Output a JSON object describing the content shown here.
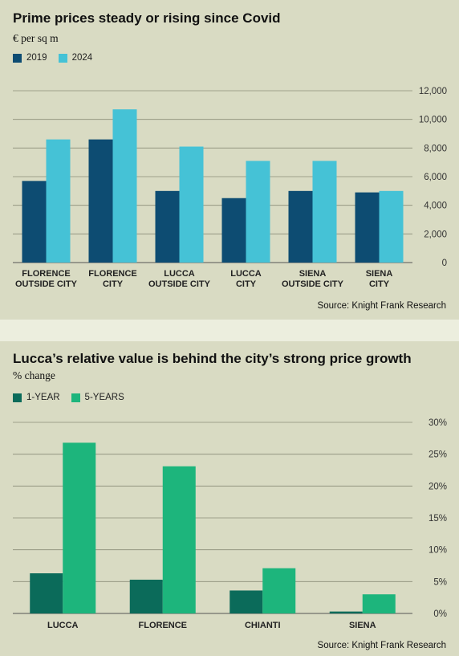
{
  "chart_data": [
    {
      "type": "bar",
      "title": "Prime prices steady or rising since Covid",
      "subtitle": "€ per sq m",
      "categories": [
        [
          "FLORENCE",
          "OUTSIDE CITY"
        ],
        [
          "FLORENCE",
          "CITY"
        ],
        [
          "LUCCA",
          "OUTSIDE CITY"
        ],
        [
          "LUCCA",
          "CITY"
        ],
        [
          "SIENA",
          "OUTSIDE CITY"
        ],
        [
          "SIENA",
          "CITY"
        ]
      ],
      "series": [
        {
          "name": "2019",
          "color": "#0d4c72",
          "values": [
            5700,
            8600,
            5000,
            4500,
            5000,
            4900
          ]
        },
        {
          "name": "2024",
          "color": "#45c2d6",
          "values": [
            8600,
            10700,
            8100,
            7100,
            7100,
            5000
          ]
        }
      ],
      "ylim": [
        0,
        12000
      ],
      "yticks": [
        "12,000",
        "10,000",
        "8,000",
        "6,000",
        "4,000",
        "2,000",
        "0"
      ],
      "ytick_values": [
        12000,
        10000,
        8000,
        6000,
        4000,
        2000,
        0
      ],
      "grid": true,
      "axis_position": "right",
      "legend_placement": "top-left",
      "source": "Source: Knight Frank Research"
    },
    {
      "type": "bar",
      "title": "Lucca’s relative value is behind the city’s strong price growth",
      "subtitle": "% change",
      "categories": [
        [
          "LUCCA"
        ],
        [
          "FLORENCE"
        ],
        [
          "CHIANTI"
        ],
        [
          "SIENA"
        ]
      ],
      "series": [
        {
          "name": "1-YEAR",
          "color": "#0b6b5a",
          "values": [
            6.3,
            5.3,
            3.6,
            0.3
          ]
        },
        {
          "name": "5-YEARS",
          "color": "#1db57c",
          "values": [
            26.8,
            23.1,
            7.1,
            3.0
          ]
        }
      ],
      "ylim": [
        0,
        30
      ],
      "yticks": [
        "30%",
        "25%",
        "20%",
        "15%",
        "10%",
        "5%",
        "0%"
      ],
      "ytick_values": [
        30,
        25,
        20,
        15,
        10,
        5,
        0
      ],
      "grid": true,
      "axis_position": "right",
      "legend_placement": "top-left",
      "source": "Source: Knight Frank Research"
    }
  ]
}
